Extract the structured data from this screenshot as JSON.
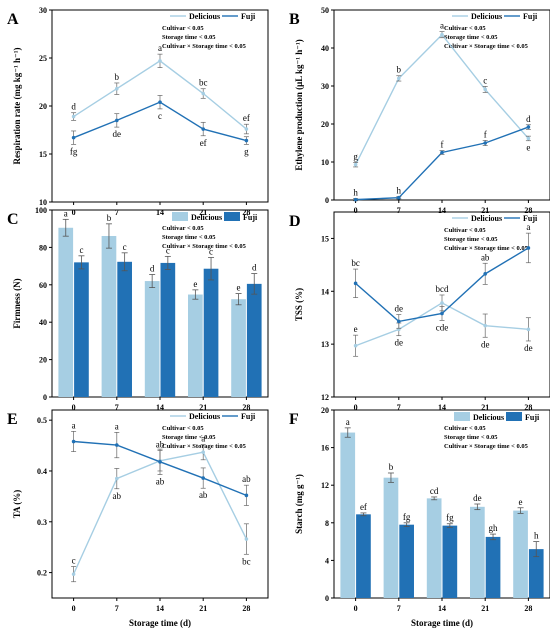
{
  "colors": {
    "delicious": "#a6cee3",
    "fuji": "#2171b5",
    "axis": "#000000"
  },
  "chart_data": [
    {
      "id": "A",
      "type": "line",
      "letter": "A",
      "ylabel": "Respiration rate (mg kg⁻¹ h⁻¹)",
      "xlabel": "",
      "x": [
        0,
        7,
        14,
        21,
        28
      ],
      "ylim": [
        10,
        30
      ],
      "yticks": [
        10,
        15,
        20,
        25,
        30
      ],
      "stats": [
        "Cultivar < 0.05",
        "Storage time < 0.05",
        "Cultivar × Storage time < 0.05"
      ],
      "legend": [
        "Delicious",
        "Fuji"
      ],
      "series": [
        {
          "name": "Delicious",
          "values": [
            18.9,
            21.8,
            24.7,
            21.3,
            17.6
          ],
          "err": [
            0.4,
            0.6,
            0.7,
            0.5,
            0.5
          ],
          "letters": [
            "d",
            "b",
            "a",
            "bc",
            "ef"
          ],
          "pos": [
            "above",
            "above",
            "above",
            "above",
            "above"
          ]
        },
        {
          "name": "Fuji",
          "values": [
            16.7,
            18.5,
            20.4,
            17.6,
            16.4
          ],
          "err": [
            0.7,
            0.7,
            0.7,
            0.7,
            0.4
          ],
          "letters": [
            "fg",
            "de",
            "c",
            "ef",
            "g"
          ],
          "pos": [
            "below",
            "below",
            "below",
            "below",
            "below"
          ]
        }
      ]
    },
    {
      "id": "B",
      "type": "line",
      "letter": "B",
      "ylabel": "Ethylene production (μL kg⁻¹ h⁻¹)",
      "xlabel": "",
      "x": [
        0,
        7,
        14,
        21,
        28
      ],
      "ylim": [
        0,
        50
      ],
      "yticks": [
        0,
        10,
        20,
        30,
        40,
        50
      ],
      "stats": [
        "Cultivar < 0.05",
        "Storage time < 0.05",
        "Cultivar × Storage time < 0.05"
      ],
      "legend": [
        "Delicious",
        "Fuji"
      ],
      "series": [
        {
          "name": "Delicious",
          "values": [
            9.3,
            32.0,
            43.5,
            29.1,
            16.2
          ],
          "err": [
            0.6,
            0.7,
            0.8,
            0.8,
            0.6
          ],
          "letters": [
            "g",
            "b",
            "a",
            "c",
            "e"
          ],
          "pos": [
            "above",
            "above",
            "above",
            "above",
            "below"
          ]
        },
        {
          "name": "Fuji",
          "values": [
            0.1,
            0.6,
            12.5,
            15.0,
            19.2
          ],
          "err": [
            0.3,
            0.3,
            0.5,
            0.7,
            0.6
          ],
          "letters": [
            "h",
            "h",
            "f",
            "f",
            "d"
          ],
          "pos": [
            "above",
            "above",
            "above",
            "above",
            "above"
          ]
        }
      ]
    },
    {
      "id": "C",
      "type": "bar",
      "letter": "C",
      "ylabel": "Firmness (N)",
      "xlabel": "",
      "categories": [
        "0",
        "7",
        "14",
        "21",
        "28"
      ],
      "ylim": [
        0,
        100
      ],
      "yticks": [
        0,
        20,
        40,
        60,
        80,
        100
      ],
      "stats": [
        "Cultivar < 0.05",
        "Storage time < 0.05",
        "Cultivar × Storage time < 0.05"
      ],
      "legend": [
        "Delicious",
        "Fuji"
      ],
      "series": [
        {
          "name": "Delicious",
          "values": [
            90.5,
            86.1,
            62.0,
            54.8,
            52.3
          ],
          "err": [
            4.5,
            6.5,
            3.5,
            2.5,
            3.0
          ],
          "letters": [
            "a",
            "b",
            "d",
            "e",
            "e"
          ]
        },
        {
          "name": "Fuji",
          "values": [
            72.0,
            72.3,
            71.7,
            68.6,
            60.5
          ],
          "err": [
            3.5,
            4.8,
            3.5,
            6.0,
            5.5
          ],
          "letters": [
            "c",
            "c",
            "c",
            "c",
            "d"
          ]
        }
      ]
    },
    {
      "id": "D",
      "type": "line",
      "letter": "D",
      "ylabel": "TSS (%)",
      "xlabel": "",
      "x": [
        0,
        7,
        14,
        21,
        28
      ],
      "ylim": [
        12,
        15.5
      ],
      "yticks": [
        12,
        13,
        14,
        15
      ],
      "stats": [
        "Cultivar < 0.05",
        "Storage time < 0.05",
        "Cultivar × Storage time < 0.05"
      ],
      "legend": [
        "Delicious",
        "Fuji"
      ],
      "series": [
        {
          "name": "Delicious",
          "values": [
            12.97,
            13.28,
            13.78,
            13.35,
            13.28
          ],
          "err": [
            0.2,
            0.12,
            0.15,
            0.22,
            0.22
          ],
          "letters": [
            "e",
            "de",
            "bcd",
            "de",
            "de"
          ],
          "pos": [
            "above",
            "below",
            "above",
            "below",
            "below"
          ]
        },
        {
          "name": "Fuji",
          "values": [
            14.15,
            13.43,
            13.58,
            14.33,
            14.82
          ],
          "err": [
            0.27,
            0.13,
            0.13,
            0.2,
            0.28
          ],
          "letters": [
            "bc",
            "de",
            "cde",
            "ab",
            "a"
          ],
          "pos": [
            "above",
            "above",
            "below",
            "above",
            "above"
          ]
        }
      ]
    },
    {
      "id": "E",
      "type": "line",
      "letter": "E",
      "ylabel": "TA (%)",
      "xlabel": "Storage time (d)",
      "x": [
        0,
        7,
        14,
        21,
        28
      ],
      "ylim": [
        0.15,
        0.52
      ],
      "yticks": [
        0.2,
        0.3,
        0.4,
        0.5
      ],
      "stats": [
        "Cultivar < 0.05",
        "Storage time < 0.05",
        "Cultivar × Storage time < 0.05"
      ],
      "legend": [
        "Delicious",
        "Fuji"
      ],
      "series": [
        {
          "name": "Delicious",
          "values": [
            0.197,
            0.385,
            0.42,
            0.437,
            0.266
          ],
          "err": [
            0.015,
            0.02,
            0.02,
            0.015,
            0.03
          ],
          "letters": [
            "c",
            "ab",
            "ab",
            "a",
            "bc"
          ],
          "pos": [
            "above",
            "below",
            "above",
            "above",
            "below"
          ]
        },
        {
          "name": "Fuji",
          "values": [
            0.458,
            0.451,
            0.418,
            0.386,
            0.352
          ],
          "err": [
            0.02,
            0.025,
            0.025,
            0.02,
            0.02
          ],
          "letters": [
            "a",
            "a",
            "ab",
            "ab",
            "ab"
          ],
          "pos": [
            "above",
            "above",
            "below",
            "below",
            "above"
          ]
        }
      ]
    },
    {
      "id": "F",
      "type": "bar",
      "letter": "F",
      "ylabel": "Starch (mg g⁻¹)",
      "xlabel": "Storage time (d)",
      "categories": [
        "0",
        "7",
        "14",
        "21",
        "28"
      ],
      "ylim": [
        0,
        20
      ],
      "yticks": [
        0,
        4,
        8,
        12,
        16,
        20
      ],
      "stats": [
        "Cultivar < 0.05",
        "Storage time < 0.05",
        "Cultivar × Storage time < 0.05"
      ],
      "legend": [
        "Delicious",
        "Fuji"
      ],
      "series": [
        {
          "name": "Delicious",
          "values": [
            17.6,
            12.8,
            10.6,
            9.7,
            9.3
          ],
          "err": [
            0.5,
            0.5,
            0.15,
            0.3,
            0.3
          ],
          "letters": [
            "a",
            "b",
            "cd",
            "de",
            "e"
          ]
        },
        {
          "name": "Fuji",
          "values": [
            8.9,
            7.8,
            7.7,
            6.5,
            5.2
          ],
          "err": [
            0.15,
            0.2,
            0.2,
            0.3,
            0.8
          ],
          "letters": [
            "ef",
            "fg",
            "fg",
            "gh",
            "h"
          ]
        }
      ]
    }
  ]
}
